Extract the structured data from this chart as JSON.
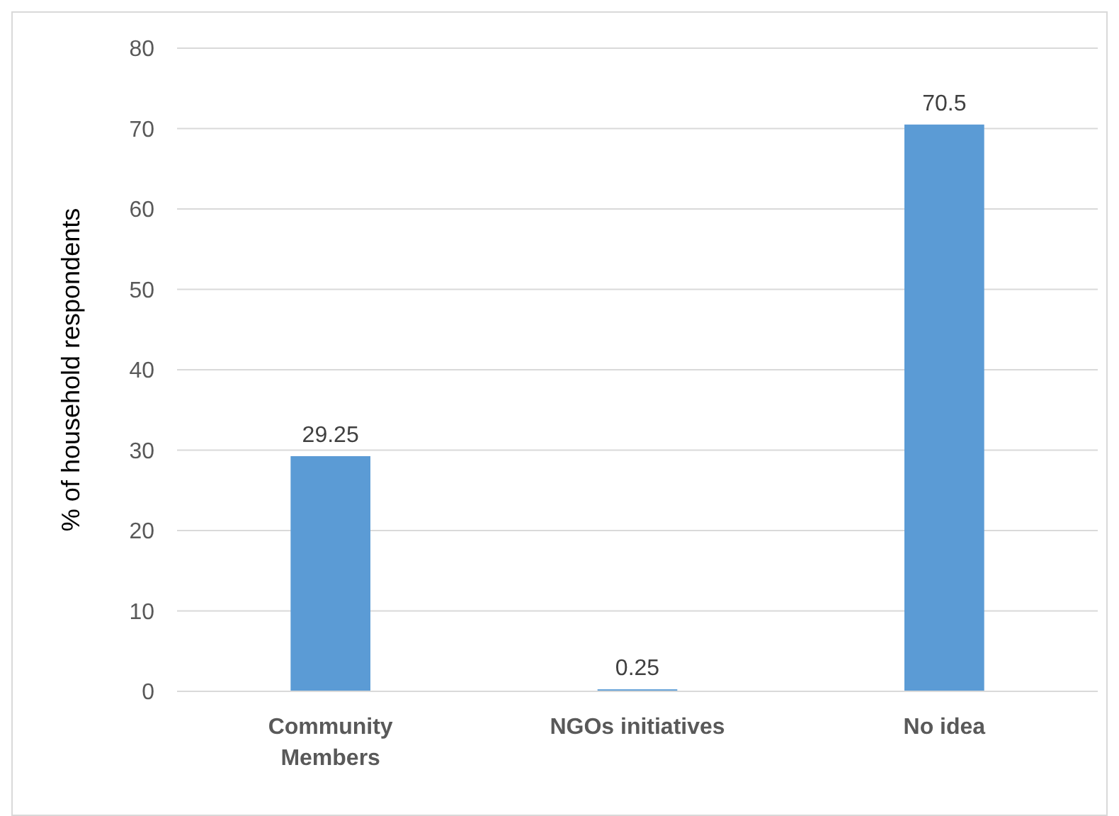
{
  "chart_data": {
    "type": "bar",
    "ylabel": "% of household respondents",
    "categories": [
      "Community Members",
      "NGOs initiatives",
      "No idea"
    ],
    "values": [
      29.25,
      0.25,
      70.5
    ],
    "color": "#5b9bd5",
    "ylim": [
      0,
      80
    ],
    "yticks": [
      0,
      10,
      20,
      30,
      40,
      50,
      60,
      70,
      80
    ],
    "grid": "y",
    "data_labels": true
  }
}
